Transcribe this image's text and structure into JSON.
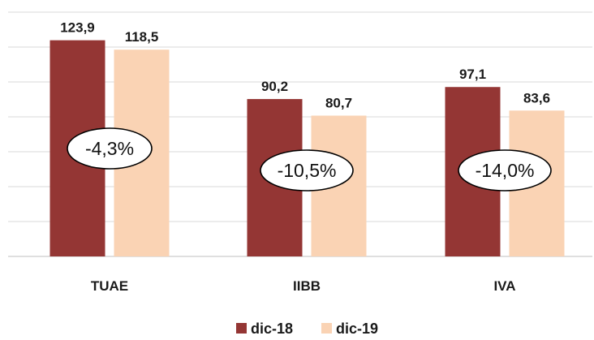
{
  "chart_data": {
    "type": "bar",
    "categories": [
      "TUAE",
      "IIBB",
      "IVA"
    ],
    "series": [
      {
        "name": "dic-18",
        "values": [
          123.9,
          90.2,
          97.1
        ],
        "color": "#943634"
      },
      {
        "name": "dic-19",
        "values": [
          118.5,
          80.7,
          83.6
        ],
        "color": "#FAD3B4"
      }
    ],
    "value_labels": [
      [
        "123,9",
        "90,2",
        "97,1"
      ],
      [
        "118,5",
        "80,7",
        "83,6"
      ]
    ],
    "changes": [
      "-4,3%",
      "-10,5%",
      "-14,0%"
    ],
    "ylim": [
      0,
      140
    ],
    "grid": true,
    "legend": "bottom-center"
  }
}
